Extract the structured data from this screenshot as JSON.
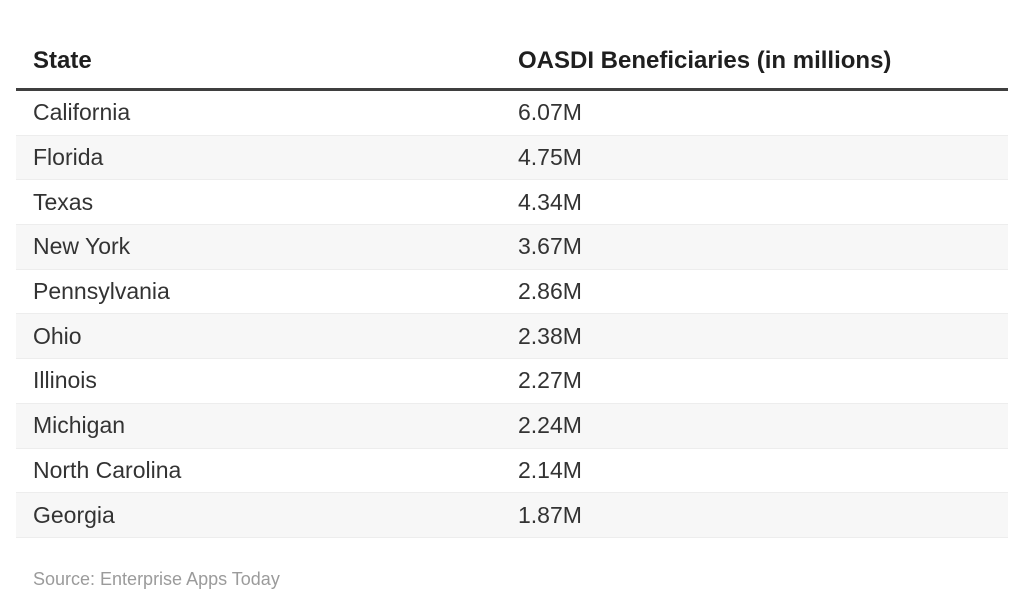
{
  "table": {
    "columns": [
      "State",
      "OASDI Beneficiaries (in millions)"
    ],
    "rows": [
      {
        "state": "California",
        "value": "6.07M"
      },
      {
        "state": "Florida",
        "value": "4.75M"
      },
      {
        "state": "Texas",
        "value": "4.34M"
      },
      {
        "state": "New York",
        "value": "3.67M"
      },
      {
        "state": "Pennsylvania",
        "value": "2.86M"
      },
      {
        "state": "Ohio",
        "value": "2.38M"
      },
      {
        "state": "Illinois",
        "value": "2.27M"
      },
      {
        "state": "Michigan",
        "value": "2.24M"
      },
      {
        "state": "North Carolina",
        "value": "2.14M"
      },
      {
        "state": "Georgia",
        "value": "1.87M"
      }
    ]
  },
  "source": "Source: Enterprise Apps Today",
  "colors": {
    "header_text": "#1f1f1f",
    "header_border": "#3f3f3f",
    "cell_text": "#333333",
    "row_alt_bg": "#f7f7f7",
    "row_border": "#ededed",
    "source_text": "#9b9b9b",
    "background": "#ffffff"
  },
  "chart_data": {
    "type": "table",
    "title": "",
    "columns": [
      "State",
      "OASDI Beneficiaries (in millions)"
    ],
    "categories": [
      "California",
      "Florida",
      "Texas",
      "New York",
      "Pennsylvania",
      "Ohio",
      "Illinois",
      "Michigan",
      "North Carolina",
      "Georgia"
    ],
    "values_millions": [
      6.07,
      4.75,
      4.34,
      3.67,
      2.86,
      2.38,
      2.27,
      2.24,
      2.14,
      1.87
    ],
    "value_labels": [
      "6.07M",
      "4.75M",
      "4.34M",
      "3.67M",
      "2.86M",
      "2.38M",
      "2.27M",
      "2.24M",
      "2.14M",
      "1.87M"
    ],
    "source": "Source: Enterprise Apps Today",
    "layout": {
      "alternating_row_shading": true,
      "header_rule": true,
      "grid": false
    }
  }
}
